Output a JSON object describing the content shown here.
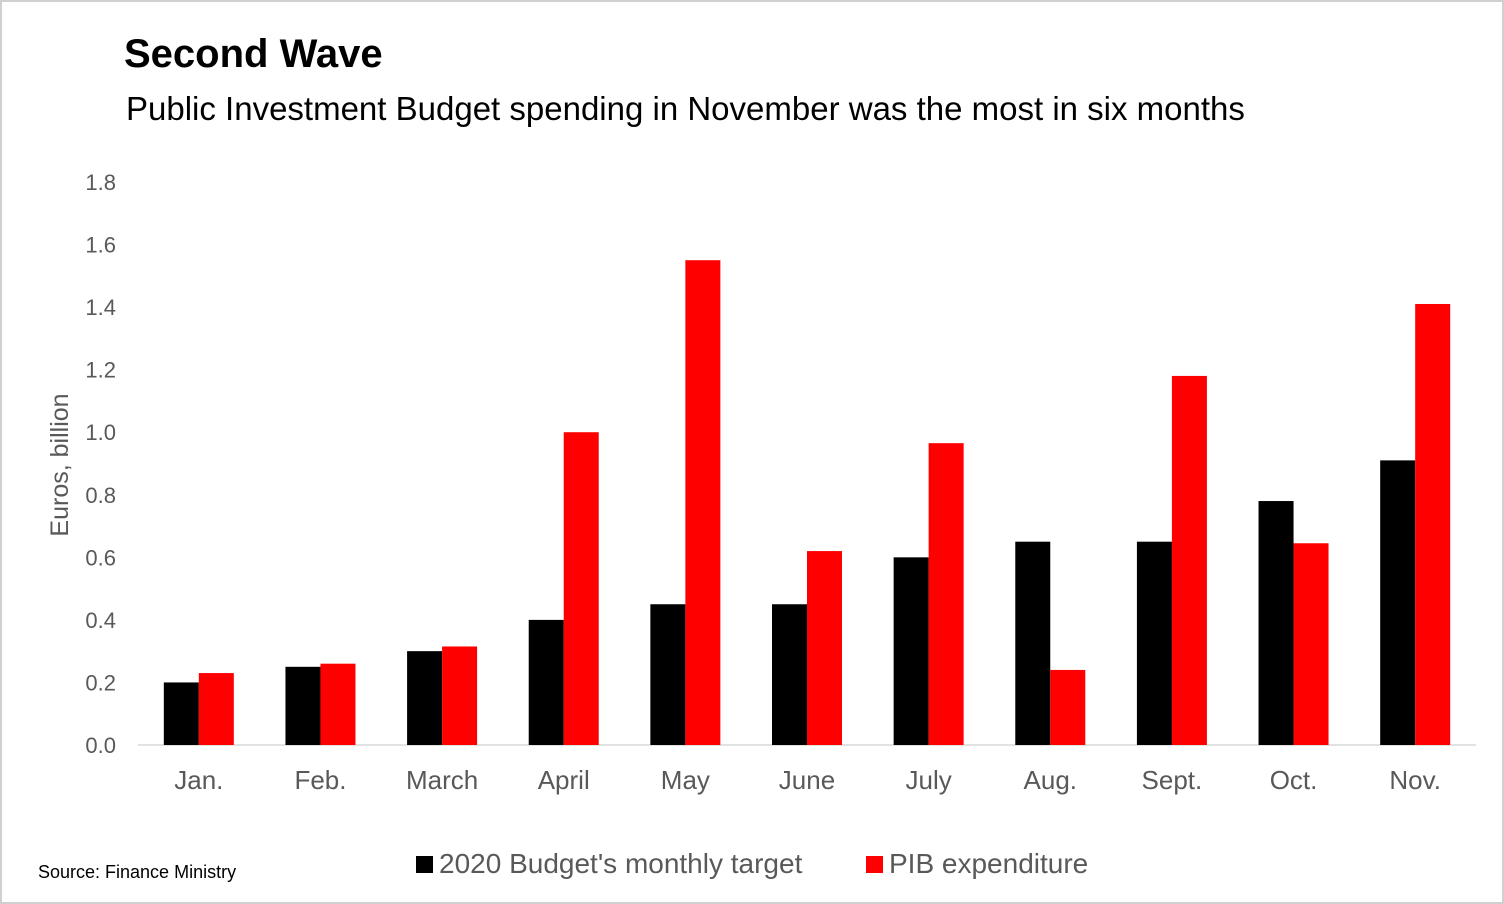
{
  "header": {
    "title": "Second Wave",
    "subtitle": "Public Investment Budget spending in November was the most in six months"
  },
  "footer": {
    "source": "Source: Finance Ministry"
  },
  "colors": {
    "series_target": "#000000",
    "series_expenditure": "#ff0000",
    "axis_text": "#595959",
    "axis_line": "#d9d9d9"
  },
  "chart_data": {
    "type": "bar",
    "title": "Second Wave",
    "subtitle": "Public Investment Budget spending in November was the most in six months",
    "xlabel": "",
    "ylabel": "Euros, billion",
    "ylim": [
      0,
      1.8
    ],
    "yticks": [
      "0.0",
      "0.2",
      "0.4",
      "0.6",
      "0.8",
      "1.0",
      "1.2",
      "1.4",
      "1.6",
      "1.8"
    ],
    "grid": false,
    "legend_position": "bottom",
    "categories": [
      "Jan.",
      "Feb.",
      "March",
      "April",
      "May",
      "June",
      "July",
      "Aug.",
      "Sept.",
      "Oct.",
      "Nov."
    ],
    "series": [
      {
        "name": "2020 Budget's monthly target",
        "color": "#000000",
        "values": [
          0.2,
          0.25,
          0.3,
          0.4,
          0.45,
          0.45,
          0.6,
          0.65,
          0.65,
          0.78,
          0.91
        ]
      },
      {
        "name": "PIB expenditure",
        "color": "#ff0000",
        "values": [
          0.23,
          0.26,
          0.315,
          1.0,
          1.55,
          0.62,
          0.965,
          0.24,
          1.18,
          0.645,
          1.41
        ]
      }
    ]
  }
}
